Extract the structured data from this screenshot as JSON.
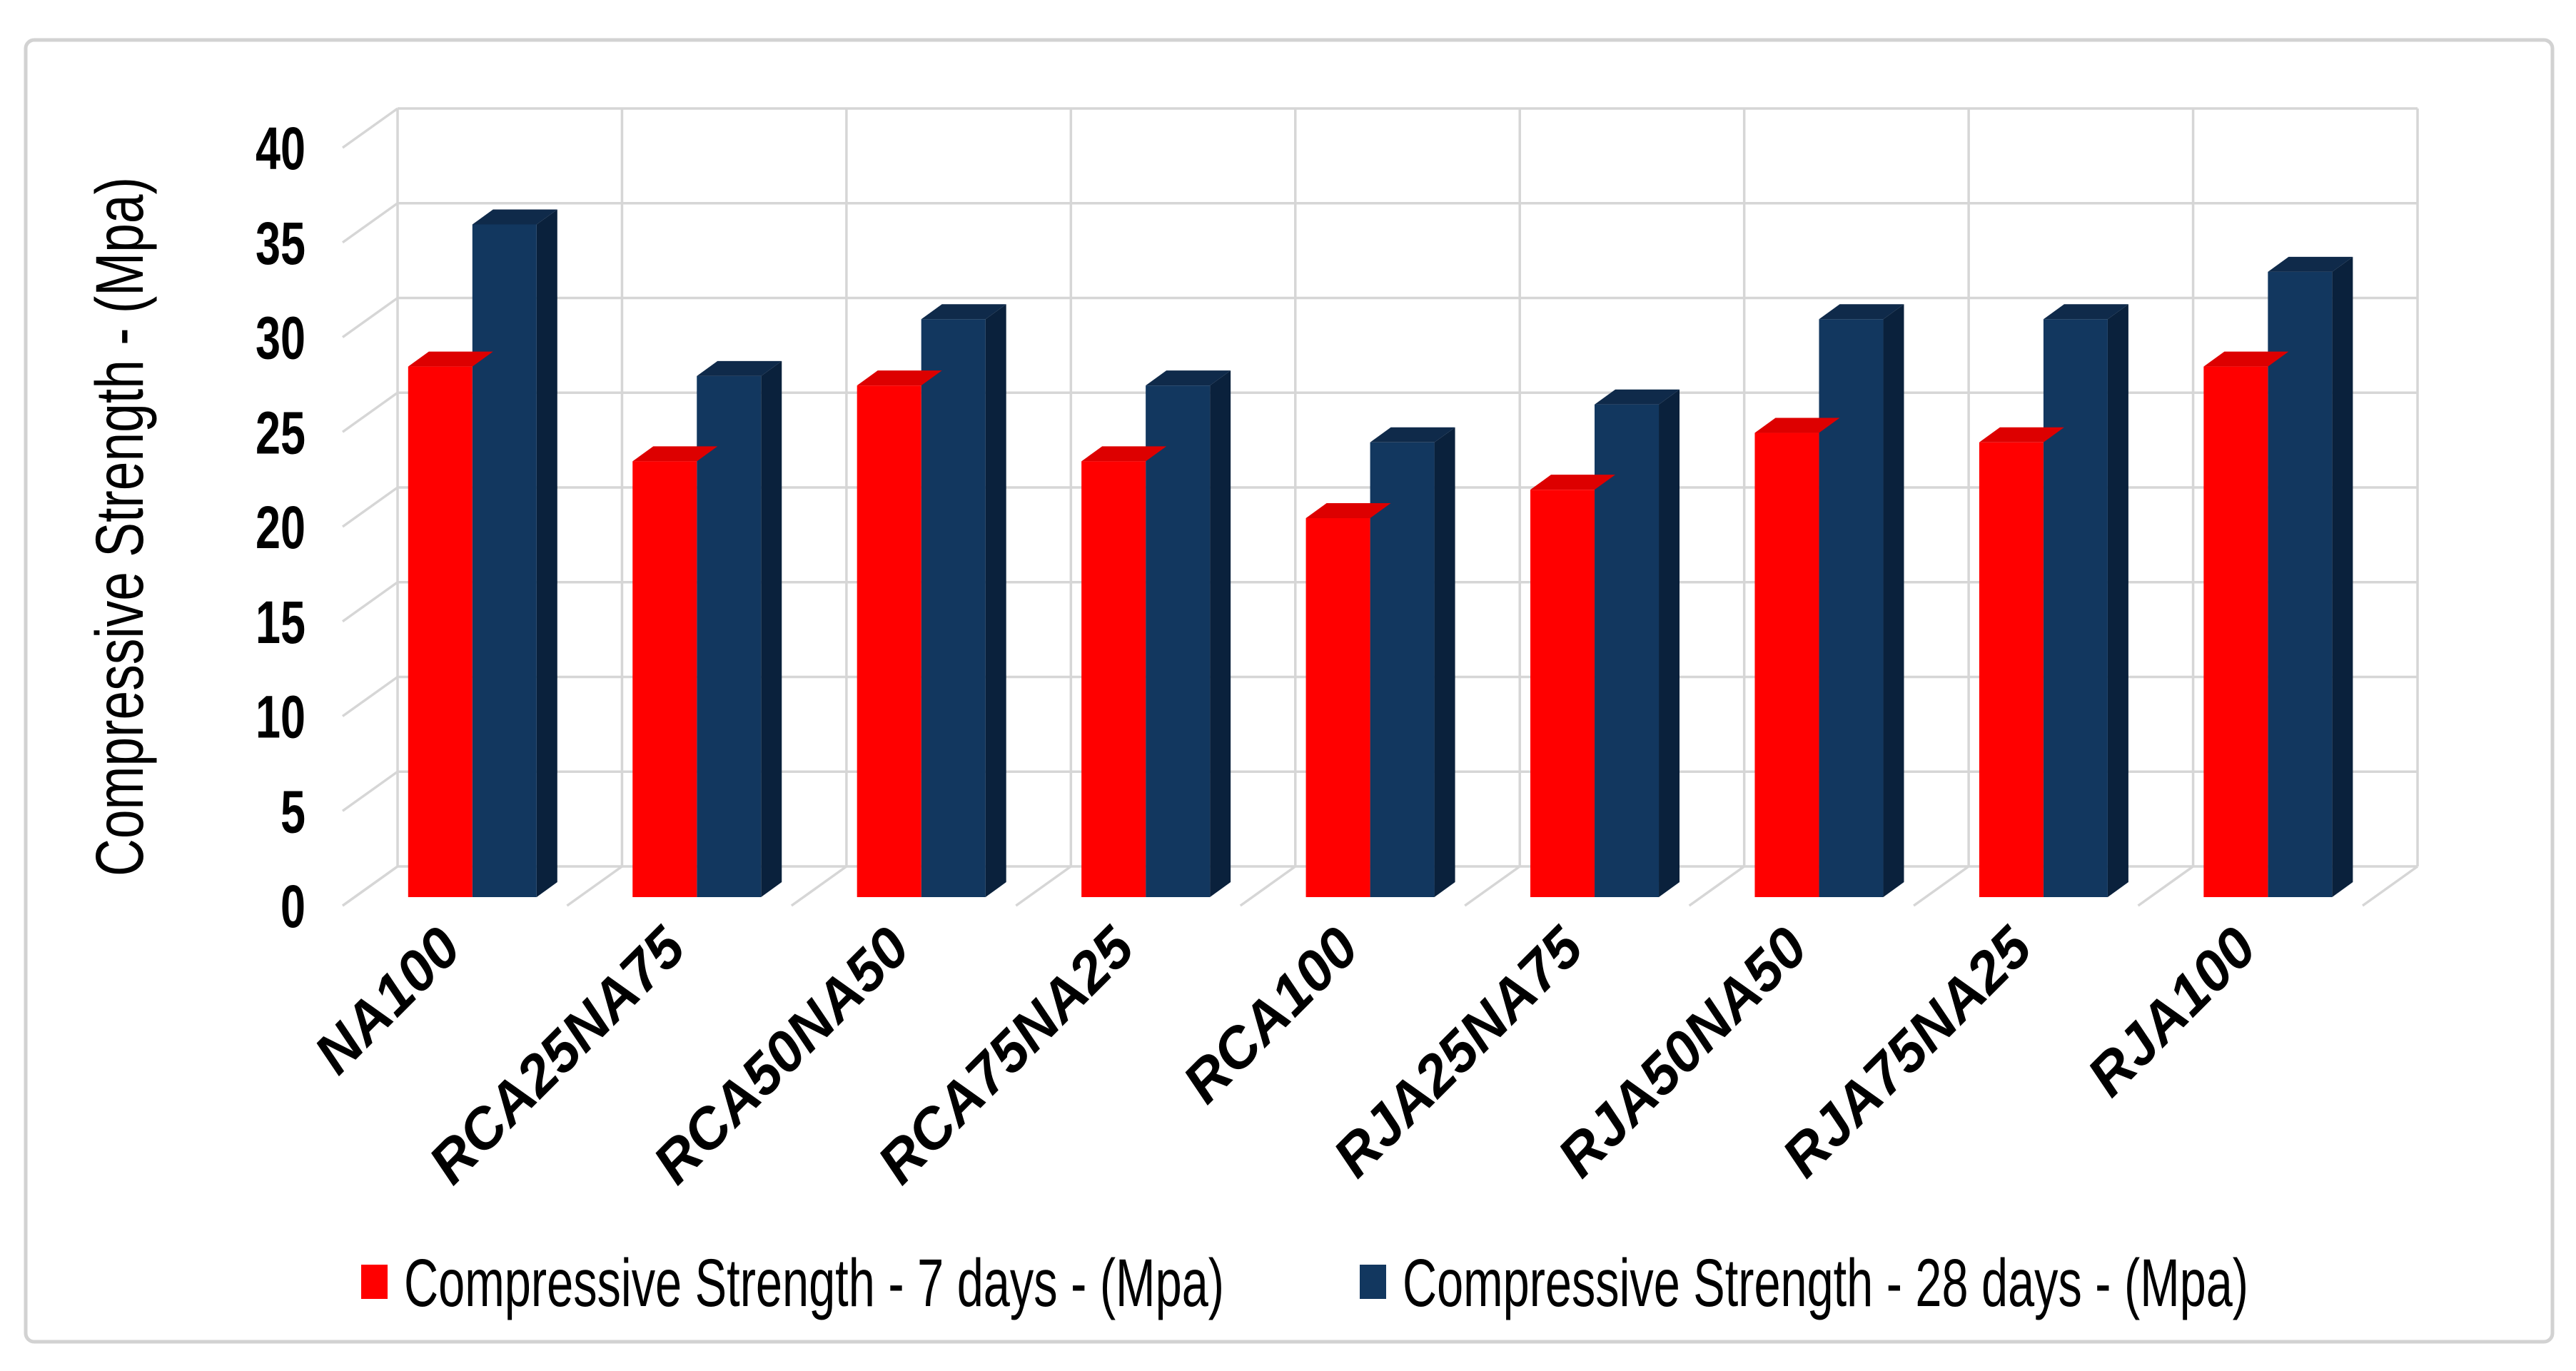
{
  "figure": {
    "background": "#ffffff",
    "border_color": "#d2d2d2"
  },
  "y_axis": {
    "title": "Compressive Strength - (Mpa)",
    "min": 0,
    "max": 40,
    "step": 5,
    "tick_labels": [
      "0",
      "5",
      "10",
      "15",
      "20",
      "25",
      "30",
      "35",
      "40"
    ]
  },
  "x_axis": {
    "categories": [
      "NA100",
      "RCA25NA75",
      "RCA50NA50",
      "RCA75NA25",
      "RCA100",
      "RJA25NA75",
      "RJA50NA50",
      "RJA75NA25",
      "RJA100"
    ]
  },
  "legend": {
    "position": "bottom",
    "items": [
      {
        "label": "Compressive Strength - 7 days - (Mpa)",
        "color": "#ff0000"
      },
      {
        "label": "Compressive Strength - 28 days - (Mpa)",
        "color": "#12375f"
      }
    ]
  },
  "chart_data": {
    "type": "bar",
    "style": "3d-clustered-column",
    "title": "",
    "xlabel": "",
    "ylabel": "Compressive Strength - (Mpa)",
    "ylim": [
      0,
      40
    ],
    "ytick_step": 5,
    "grid": true,
    "legend_position": "bottom",
    "categories": [
      "NA100",
      "RCA25NA75",
      "RCA50NA50",
      "RCA75NA25",
      "RCA100",
      "RJA25NA75",
      "RJA50NA50",
      "RJA75NA25",
      "RJA100"
    ],
    "series": [
      {
        "name": "Compressive Strength - 7 days - (Mpa)",
        "color": "#ff0000",
        "top_color": "#dd0000",
        "side_color": "#aa0000",
        "values": [
          28,
          23,
          27,
          23,
          20,
          21.5,
          24.5,
          24,
          28
        ]
      },
      {
        "name": "Compressive Strength - 28 days - (Mpa)",
        "color": "#12375f",
        "top_color": "#0f2a4a",
        "side_color": "#0a213c",
        "values": [
          35.5,
          27.5,
          30.5,
          27,
          24,
          26,
          30.5,
          30.5,
          33
        ]
      }
    ]
  }
}
